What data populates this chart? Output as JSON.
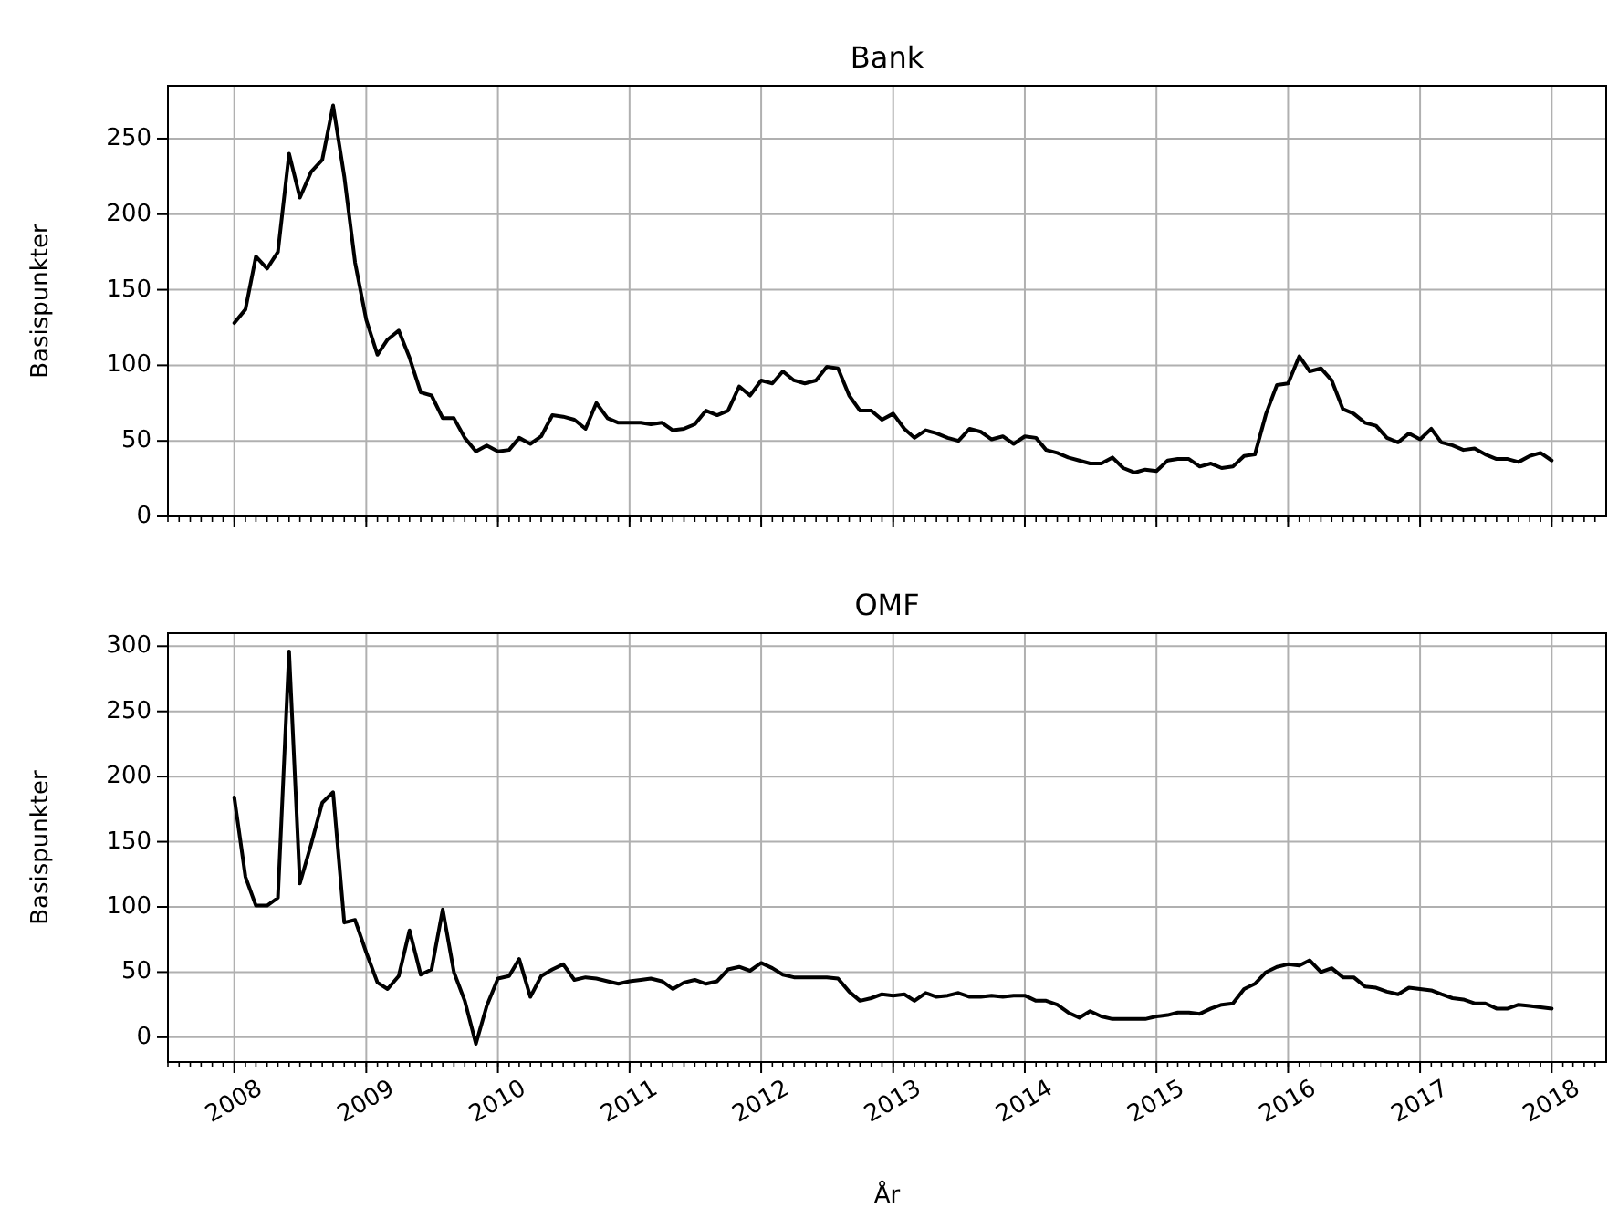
{
  "chart_data": [
    {
      "type": "line",
      "title": "Bank",
      "ylabel": "Basispunkter",
      "tick_labels": "y",
      "grid": true,
      "xlim": [
        "2007-07",
        "2018-06"
      ],
      "ylim": [
        0,
        285
      ],
      "yticks": [
        0,
        50,
        100,
        150,
        200,
        250
      ],
      "xticks": [
        {
          "value": "2008",
          "label": null
        },
        {
          "value": "2009",
          "label": null
        },
        {
          "value": "2010",
          "label": null
        },
        {
          "value": "2011",
          "label": null
        },
        {
          "value": "2012",
          "label": null
        },
        {
          "value": "2013",
          "label": null
        },
        {
          "value": "2014",
          "label": null
        },
        {
          "value": "2015",
          "label": null
        },
        {
          "value": "2016",
          "label": null
        },
        {
          "value": "2017",
          "label": null
        },
        {
          "value": "2018",
          "label": null
        }
      ],
      "x": [
        "2008-01",
        "2008-02",
        "2008-03",
        "2008-04",
        "2008-05",
        "2008-06",
        "2008-07",
        "2008-08",
        "2008-09",
        "2008-10",
        "2008-11",
        "2008-12",
        "2009-01",
        "2009-02",
        "2009-03",
        "2009-04",
        "2009-05",
        "2009-06",
        "2009-07",
        "2009-08",
        "2009-09",
        "2009-10",
        "2009-11",
        "2009-12",
        "2010-01",
        "2010-02",
        "2010-03",
        "2010-04",
        "2010-05",
        "2010-06",
        "2010-07",
        "2010-08",
        "2010-09",
        "2010-10",
        "2010-11",
        "2010-12",
        "2011-01",
        "2011-02",
        "2011-03",
        "2011-04",
        "2011-05",
        "2011-06",
        "2011-07",
        "2011-08",
        "2011-09",
        "2011-10",
        "2011-11",
        "2011-12",
        "2012-01",
        "2012-02",
        "2012-03",
        "2012-04",
        "2012-05",
        "2012-06",
        "2012-07",
        "2012-08",
        "2012-09",
        "2012-10",
        "2012-11",
        "2012-12",
        "2013-01",
        "2013-02",
        "2013-03",
        "2013-04",
        "2013-05",
        "2013-06",
        "2013-07",
        "2013-08",
        "2013-09",
        "2013-10",
        "2013-11",
        "2013-12",
        "2014-01",
        "2014-02",
        "2014-03",
        "2014-04",
        "2014-05",
        "2014-06",
        "2014-07",
        "2014-08",
        "2014-09",
        "2014-10",
        "2014-11",
        "2014-12",
        "2015-01",
        "2015-02",
        "2015-03",
        "2015-04",
        "2015-05",
        "2015-06",
        "2015-07",
        "2015-08",
        "2015-09",
        "2015-10",
        "2015-11",
        "2015-12",
        "2016-01",
        "2016-02",
        "2016-03",
        "2016-04",
        "2016-05",
        "2016-06",
        "2016-07",
        "2016-08",
        "2016-09",
        "2016-10",
        "2016-11",
        "2016-12",
        "2017-01",
        "2017-02",
        "2017-03",
        "2017-04",
        "2017-05",
        "2017-06",
        "2017-07",
        "2017-08",
        "2017-09",
        "2017-10",
        "2017-11",
        "2017-12",
        "2018-01"
      ],
      "series": [
        {
          "color": "#000000",
          "values": [
            128,
            137,
            172,
            164,
            175,
            240,
            211,
            228,
            236,
            272,
            225,
            168,
            130,
            107,
            117,
            123,
            105,
            82,
            80,
            65,
            65,
            52,
            43,
            47,
            43,
            44,
            52,
            48,
            53,
            67,
            66,
            64,
            58,
            75,
            65,
            62,
            62,
            62,
            61,
            62,
            57,
            58,
            61,
            70,
            67,
            70,
            86,
            80,
            90,
            88,
            96,
            90,
            88,
            90,
            99,
            98,
            80,
            70,
            70,
            64,
            68,
            58,
            52,
            57,
            55,
            52,
            50,
            58,
            56,
            51,
            53,
            48,
            53,
            52,
            44,
            42,
            39,
            37,
            35,
            35,
            39,
            32,
            29,
            31,
            30,
            37,
            38,
            38,
            33,
            35,
            32,
            33,
            40,
            41,
            68,
            87,
            88,
            106,
            96,
            98,
            90,
            71,
            68,
            62,
            60,
            52,
            49,
            55,
            51,
            58,
            49,
            47,
            44,
            45,
            41,
            38,
            38,
            36,
            40,
            42,
            37
          ]
        }
      ]
    },
    {
      "type": "line",
      "title": "OMF",
      "ylabel": "Basispunkter",
      "xlabel": "År",
      "grid": true,
      "xlim": [
        "2007-07",
        "2018-06"
      ],
      "ylim": [
        -19,
        310
      ],
      "yticks": [
        0,
        50,
        100,
        150,
        200,
        250,
        300
      ],
      "xticks": [
        "2008",
        "2009",
        "2010",
        "2011",
        "2012",
        "2013",
        "2014",
        "2015",
        "2016",
        "2017",
        "2018"
      ],
      "x": [
        "2008-01",
        "2008-02",
        "2008-03",
        "2008-04",
        "2008-05",
        "2008-06",
        "2008-07",
        "2008-08",
        "2008-09",
        "2008-10",
        "2008-11",
        "2008-12",
        "2009-01",
        "2009-02",
        "2009-03",
        "2009-04",
        "2009-05",
        "2009-06",
        "2009-07",
        "2009-08",
        "2009-09",
        "2009-10",
        "2009-11",
        "2009-12",
        "2010-01",
        "2010-02",
        "2010-03",
        "2010-04",
        "2010-05",
        "2010-06",
        "2010-07",
        "2010-08",
        "2010-09",
        "2010-10",
        "2010-11",
        "2010-12",
        "2011-01",
        "2011-02",
        "2011-03",
        "2011-04",
        "2011-05",
        "2011-06",
        "2011-07",
        "2011-08",
        "2011-09",
        "2011-10",
        "2011-11",
        "2011-12",
        "2012-01",
        "2012-02",
        "2012-03",
        "2012-04",
        "2012-05",
        "2012-06",
        "2012-07",
        "2012-08",
        "2012-09",
        "2012-10",
        "2012-11",
        "2012-12",
        "2013-01",
        "2013-02",
        "2013-03",
        "2013-04",
        "2013-05",
        "2013-06",
        "2013-07",
        "2013-08",
        "2013-09",
        "2013-10",
        "2013-11",
        "2013-12",
        "2014-01",
        "2014-02",
        "2014-03",
        "2014-04",
        "2014-05",
        "2014-06",
        "2014-07",
        "2014-08",
        "2014-09",
        "2014-10",
        "2014-11",
        "2014-12",
        "2015-01",
        "2015-02",
        "2015-03",
        "2015-04",
        "2015-05",
        "2015-06",
        "2015-07",
        "2015-08",
        "2015-09",
        "2015-10",
        "2015-11",
        "2015-12",
        "2016-01",
        "2016-02",
        "2016-03",
        "2016-04",
        "2016-05",
        "2016-06",
        "2016-07",
        "2016-08",
        "2016-09",
        "2016-10",
        "2016-11",
        "2016-12",
        "2017-01",
        "2017-02",
        "2017-03",
        "2017-04",
        "2017-05",
        "2017-06",
        "2017-07",
        "2017-08",
        "2017-09",
        "2017-10",
        "2017-11",
        "2017-12",
        "2018-01"
      ],
      "series": [
        {
          "color": "#000000",
          "values": [
            184,
            123,
            101,
            101,
            107,
            296,
            118,
            148,
            180,
            188,
            88,
            90,
            65,
            42,
            37,
            47,
            82,
            48,
            52,
            98,
            50,
            28,
            -5,
            24,
            45,
            47,
            60,
            31,
            47,
            52,
            56,
            44,
            46,
            45,
            43,
            41,
            43,
            44,
            45,
            43,
            37,
            42,
            44,
            41,
            43,
            52,
            54,
            51,
            57,
            53,
            48,
            46,
            46,
            46,
            46,
            45,
            35,
            28,
            30,
            33,
            32,
            33,
            28,
            34,
            31,
            32,
            34,
            31,
            31,
            32,
            31,
            32,
            32,
            28,
            28,
            25,
            19,
            15,
            20,
            16,
            14,
            14,
            14,
            14,
            16,
            17,
            19,
            19,
            18,
            22,
            25,
            26,
            37,
            41,
            50,
            54,
            56,
            55,
            59,
            50,
            53,
            46,
            46,
            39,
            38,
            35,
            33,
            38,
            37,
            36,
            33,
            30,
            29,
            26,
            26,
            22,
            22,
            25,
            24,
            23,
            22
          ]
        }
      ]
    }
  ]
}
